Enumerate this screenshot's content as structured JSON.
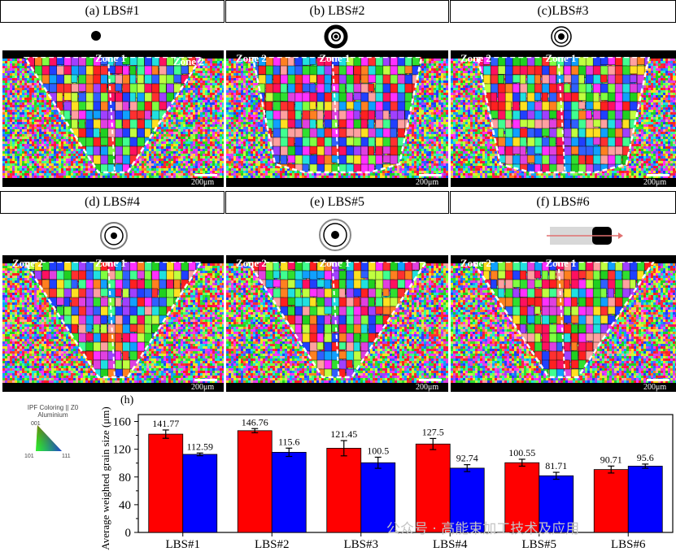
{
  "panels": [
    {
      "label": "(a) LBS#1",
      "zone_left": "",
      "zone_center": "Zone 1",
      "zone_right": "Zone 2",
      "scale": "200μm",
      "symbol": "dot"
    },
    {
      "label": "(b) LBS#2",
      "zone_left": "Zone 2",
      "zone_center": "Zone 1",
      "zone_right": "",
      "scale": "200μm",
      "symbol": "thick-ring"
    },
    {
      "label": "(c)LBS#3",
      "zone_left": "Zone 2",
      "zone_center": "Zone 1",
      "zone_right": "",
      "scale": "200μm",
      "symbol": "double-ring"
    },
    {
      "label": "(d) LBS#4",
      "zone_left": "Zone 2",
      "zone_center": "Zone 1",
      "zone_right": "",
      "scale": "200μm",
      "symbol": "ring-dot"
    },
    {
      "label": "(e) LBS#5",
      "zone_left": "Zone 2",
      "zone_center": "Zone 1",
      "zone_right": "",
      "scale": "200μm",
      "symbol": "large-ring-dot"
    },
    {
      "label": "(f) LBS#6",
      "zone_left": "Zone 2",
      "zone_center": "Zone 1",
      "zone_right": "",
      "scale": "200μm",
      "symbol": "bar-arrow"
    }
  ],
  "ipf_legend": {
    "title_line1": "IPF Coloring || Z0",
    "title_line2": "Aluminium",
    "corner_top": "001",
    "corner_left": "101",
    "corner_right": "111"
  },
  "chart_data": {
    "type": "bar",
    "panel_label": "(h)",
    "categories": [
      "LBS#1",
      "LBS#2",
      "LBS#3",
      "LBS#4",
      "LBS#5",
      "LBS#6"
    ],
    "series": [
      {
        "color": "#ff0000",
        "values": [
          141.77,
          146.76,
          121.45,
          127.5,
          100.55,
          90.71
        ],
        "errors": [
          6,
          3,
          11,
          8,
          5,
          5
        ]
      },
      {
        "color": "#0000ff",
        "values": [
          112.59,
          115.6,
          100.5,
          92.74,
          81.71,
          95.6
        ],
        "errors": [
          2,
          6,
          8,
          5,
          5,
          3
        ]
      }
    ],
    "value_labels": [
      [
        "141.77",
        "112.59"
      ],
      [
        "146.76",
        "115.6"
      ],
      [
        "121.45",
        "100.5"
      ],
      [
        "127.5",
        "92.74"
      ],
      [
        "100.55",
        "81.71"
      ],
      [
        "90.71",
        "95.6"
      ]
    ],
    "ylabel": "Average weighted grain size (μm)",
    "xlabel": "",
    "ylim": [
      0,
      170
    ],
    "yticks": [
      0,
      40,
      80,
      120,
      160
    ],
    "grid": false,
    "legend": "none"
  },
  "watermark": "公众号 · 高能束加工技术及应用"
}
